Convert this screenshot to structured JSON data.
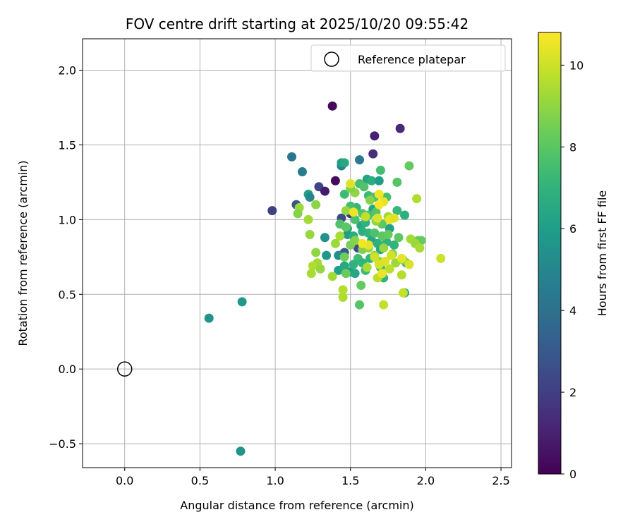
{
  "chart_data": {
    "type": "scatter",
    "title": "FOV centre drift starting at 2025/10/20 09:55:42",
    "xlabel": "Angular distance from reference (arcmin)",
    "ylabel": "Rotation from reference (arcmin)",
    "xlim": [
      -0.28,
      2.57
    ],
    "ylim": [
      -0.66,
      2.21
    ],
    "grid": true,
    "xticks": [
      0.0,
      0.5,
      1.0,
      1.5,
      2.0,
      2.5
    ],
    "xtick_labels": [
      "0.0",
      "0.5",
      "1.0",
      "1.5",
      "2.0",
      "2.5"
    ],
    "yticks": [
      -0.5,
      0.0,
      0.5,
      1.0,
      1.5,
      2.0
    ],
    "ytick_labels": [
      "−0.5",
      "0.0",
      "0.5",
      "1.0",
      "1.5",
      "2.0"
    ],
    "legend": {
      "position": "top-right",
      "entries": [
        "Reference platepar"
      ]
    },
    "colorbar": {
      "label": "Hours from first FF file",
      "range": [
        0,
        10.8
      ],
      "ticks": [
        0,
        2,
        4,
        6,
        8,
        10
      ],
      "tick_labels": [
        "0",
        "2",
        "4",
        "6",
        "8",
        "10"
      ],
      "colormap": "viridis"
    },
    "reference_point": {
      "name": "Reference platepar",
      "x": 0.0,
      "y": 0.0
    },
    "points": [
      [
        1.38,
        1.76,
        0.2
      ],
      [
        1.66,
        1.56,
        1.0
      ],
      [
        1.83,
        1.61,
        1.2
      ],
      [
        1.65,
        1.44,
        1.5
      ],
      [
        0.98,
        1.06,
        2.0
      ],
      [
        1.29,
        1.22,
        2.2
      ],
      [
        1.33,
        1.19,
        0.8
      ],
      [
        1.4,
        1.26,
        0.3
      ],
      [
        1.14,
        1.1,
        2.8
      ],
      [
        1.44,
        1.01,
        2.5
      ],
      [
        1.5,
        1.04,
        1.8
      ],
      [
        1.55,
        0.81,
        2.3
      ],
      [
        1.46,
        0.78,
        3.0
      ],
      [
        1.11,
        1.42,
        4.2
      ],
      [
        1.18,
        1.32,
        4.5
      ],
      [
        1.56,
        1.4,
        4.4
      ],
      [
        1.44,
        1.36,
        4.8
      ],
      [
        0.56,
        0.34,
        5.5
      ],
      [
        0.78,
        0.45,
        5.8
      ],
      [
        0.77,
        -0.55,
        5.6
      ],
      [
        1.44,
        1.38,
        6.0
      ],
      [
        1.46,
        1.38,
        6.5
      ],
      [
        1.22,
        1.17,
        6.2
      ],
      [
        1.23,
        1.15,
        5.0
      ],
      [
        1.33,
        0.88,
        5.4
      ],
      [
        1.34,
        0.76,
        5.7
      ],
      [
        1.42,
        0.76,
        5.3
      ],
      [
        1.42,
        0.66,
        6.1
      ],
      [
        1.46,
        0.69,
        6.5
      ],
      [
        1.5,
        0.65,
        5.9
      ],
      [
        1.53,
        0.64,
        6.4
      ],
      [
        1.48,
        0.94,
        6.6
      ],
      [
        1.48,
        0.9,
        5.9
      ],
      [
        1.52,
        0.89,
        6.7
      ],
      [
        1.57,
        0.96,
        6.4
      ],
      [
        1.58,
        0.92,
        6.8
      ],
      [
        1.61,
        1.27,
        6.3
      ],
      [
        1.64,
        1.26,
        6.7
      ],
      [
        1.69,
        1.26,
        5.9
      ],
      [
        1.65,
        1.07,
        6.3
      ],
      [
        1.6,
        0.98,
        6.9
      ],
      [
        1.62,
        0.91,
        7.1
      ],
      [
        1.64,
        0.86,
        6.5
      ],
      [
        1.68,
        0.84,
        6.8
      ],
      [
        1.7,
        0.8,
        6.4
      ],
      [
        1.74,
        0.85,
        6.9
      ],
      [
        1.76,
        0.94,
        6.2
      ],
      [
        1.79,
        0.83,
        7.0
      ],
      [
        1.81,
        1.06,
        7.2
      ],
      [
        1.86,
        1.03,
        6.8
      ],
      [
        1.63,
        0.74,
        7.1
      ],
      [
        1.55,
        0.74,
        7.4
      ],
      [
        1.58,
        0.71,
        7.0
      ],
      [
        1.52,
        0.7,
        6.9
      ],
      [
        1.6,
        0.66,
        7.3
      ],
      [
        1.7,
        0.68,
        7.4
      ],
      [
        1.72,
        0.61,
        7.0
      ],
      [
        1.86,
        0.51,
        6.5
      ],
      [
        1.87,
        0.71,
        7.1
      ],
      [
        1.54,
        1.08,
        7.2
      ],
      [
        1.5,
        1.09,
        7.5
      ],
      [
        1.46,
        1.17,
        7.4
      ],
      [
        1.56,
        1.24,
        7.6
      ],
      [
        1.59,
        1.22,
        7.8
      ],
      [
        1.62,
        1.16,
        7.3
      ],
      [
        1.66,
        1.15,
        7.7
      ],
      [
        1.7,
        1.33,
        7.5
      ],
      [
        1.74,
        1.15,
        7.6
      ],
      [
        1.81,
        1.25,
        7.9
      ],
      [
        1.89,
        1.36,
        8.2
      ],
      [
        1.43,
        0.97,
        7.8
      ],
      [
        1.47,
        0.95,
        8.0
      ],
      [
        1.53,
        1.0,
        7.7
      ],
      [
        1.58,
        1.04,
        7.8
      ],
      [
        1.62,
        1.03,
        7.6
      ],
      [
        1.67,
        1.05,
        7.9
      ],
      [
        1.71,
        0.97,
        8.1
      ],
      [
        1.66,
        0.91,
        7.7
      ],
      [
        1.71,
        0.89,
        8.0
      ],
      [
        1.75,
        0.9,
        8.2
      ],
      [
        1.82,
        0.88,
        8.1
      ],
      [
        1.95,
        0.86,
        8.4
      ],
      [
        1.97,
        0.86,
        8.2
      ],
      [
        1.57,
        0.56,
        8.2
      ],
      [
        1.56,
        0.43,
        7.9
      ],
      [
        1.47,
        0.64,
        8.3
      ],
      [
        1.46,
        0.75,
        8.4
      ],
      [
        1.5,
        0.83,
        8.6
      ],
      [
        1.53,
        0.86,
        8.8
      ],
      [
        1.58,
        0.8,
        8.7
      ],
      [
        1.62,
        0.81,
        9.0
      ],
      [
        1.66,
        0.76,
        8.9
      ],
      [
        1.69,
        0.72,
        8.8
      ],
      [
        1.72,
        0.81,
        9.1
      ],
      [
        1.78,
        0.77,
        8.9
      ],
      [
        1.8,
        0.71,
        9.2
      ],
      [
        1.85,
        0.73,
        9.0
      ],
      [
        1.9,
        0.87,
        9.3
      ],
      [
        1.93,
        0.84,
        9.2
      ],
      [
        1.96,
        0.81,
        9.4
      ],
      [
        1.94,
        1.14,
        9.5
      ],
      [
        1.75,
        1.02,
        9.3
      ],
      [
        1.67,
        0.99,
        9.0
      ],
      [
        1.63,
        1.13,
        8.8
      ],
      [
        1.53,
        1.18,
        9.0
      ],
      [
        1.5,
        1.21,
        8.7
      ],
      [
        1.47,
        1.06,
        9.1
      ],
      [
        1.27,
        1.1,
        8.9
      ],
      [
        1.16,
        1.08,
        9.2
      ],
      [
        1.15,
        1.04,
        8.8
      ],
      [
        1.22,
        1.0,
        9.3
      ],
      [
        1.23,
        0.9,
        9.1
      ],
      [
        1.4,
        0.84,
        9.2
      ],
      [
        1.43,
        0.89,
        9.4
      ],
      [
        1.27,
        0.78,
        9.0
      ],
      [
        1.28,
        0.71,
        9.3
      ],
      [
        1.25,
        0.69,
        9.5
      ],
      [
        1.24,
        0.64,
        9.4
      ],
      [
        1.3,
        0.67,
        9.1
      ],
      [
        1.38,
        0.62,
        9.3
      ],
      [
        1.45,
        0.53,
        9.6
      ],
      [
        1.45,
        0.48,
        9.5
      ],
      [
        1.61,
        0.68,
        9.4
      ],
      [
        1.68,
        0.61,
        9.7
      ],
      [
        1.72,
        0.43,
        9.8
      ],
      [
        1.84,
        0.63,
        9.6
      ],
      [
        1.85,
        0.51,
        9.9
      ],
      [
        1.76,
        0.67,
        9.7
      ],
      [
        2.1,
        0.74,
        10.0
      ],
      [
        1.89,
        0.7,
        10.2
      ],
      [
        1.84,
        0.74,
        10.4
      ],
      [
        1.77,
        0.76,
        10.1
      ],
      [
        1.73,
        0.72,
        10.3
      ],
      [
        1.71,
        0.64,
        10.5
      ],
      [
        1.69,
        0.7,
        10.2
      ],
      [
        1.66,
        0.75,
        10.0
      ],
      [
        1.62,
        0.83,
        10.4
      ],
      [
        1.58,
        0.84,
        10.6
      ],
      [
        1.68,
        1.01,
        10.2
      ],
      [
        1.76,
        1.0,
        10.5
      ],
      [
        1.79,
        1.01,
        10.3
      ],
      [
        1.69,
        1.17,
        10.6
      ],
      [
        1.72,
        1.12,
        10.4
      ],
      [
        1.69,
        1.1,
        10.7
      ],
      [
        1.52,
        1.05,
        10.5
      ],
      [
        1.5,
        1.24,
        10.3
      ],
      [
        1.6,
        1.02,
        9.8
      ]
    ]
  }
}
